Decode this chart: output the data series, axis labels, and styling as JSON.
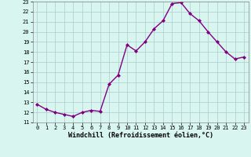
{
  "x": [
    0,
    1,
    2,
    3,
    4,
    5,
    6,
    7,
    8,
    9,
    10,
    11,
    12,
    13,
    14,
    15,
    16,
    17,
    18,
    19,
    20,
    21,
    22,
    23
  ],
  "y": [
    12.8,
    12.3,
    12.0,
    11.8,
    11.6,
    12.0,
    12.2,
    12.1,
    14.8,
    15.7,
    18.7,
    18.1,
    19.0,
    20.3,
    21.1,
    22.8,
    22.9,
    21.8,
    21.1,
    20.0,
    19.0,
    18.0,
    17.3,
    17.5
  ],
  "line_color": "#800080",
  "marker": "D",
  "marker_size": 2,
  "bg_color": "#d8f5f0",
  "grid_color": "#aacccc",
  "xlabel": "Windchill (Refroidissement éolien,°C)",
  "xlabel_fontsize": 6,
  "ylim": [
    11,
    23
  ],
  "xlim": [
    -0.5,
    23.5
  ],
  "yticks": [
    11,
    12,
    13,
    14,
    15,
    16,
    17,
    18,
    19,
    20,
    21,
    22,
    23
  ],
  "xticks": [
    0,
    1,
    2,
    3,
    4,
    5,
    6,
    7,
    8,
    9,
    10,
    11,
    12,
    13,
    14,
    15,
    16,
    17,
    18,
    19,
    20,
    21,
    22,
    23
  ],
  "tick_fontsize": 5,
  "line_width": 1.0
}
